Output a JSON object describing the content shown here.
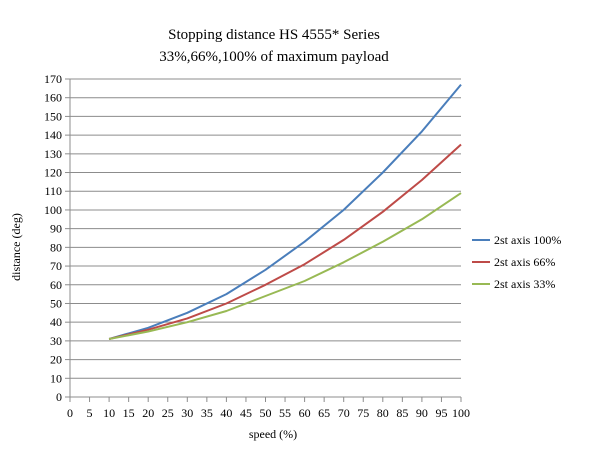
{
  "chart_data": {
    "type": "line",
    "title": "Stopping distance HS 4555* Series",
    "subtitle": "33%,66%,100% of maximum payload",
    "xlabel": "speed (%)",
    "ylabel": "distance (deg)",
    "xlim": [
      0,
      100
    ],
    "ylim": [
      0,
      170
    ],
    "xticks": [
      0,
      5,
      10,
      15,
      20,
      25,
      30,
      35,
      40,
      45,
      50,
      55,
      60,
      65,
      70,
      75,
      80,
      85,
      90,
      95,
      100
    ],
    "yticks": [
      0,
      10,
      20,
      30,
      40,
      50,
      60,
      70,
      80,
      90,
      100,
      110,
      120,
      130,
      140,
      150,
      160,
      170
    ],
    "grid": true,
    "legend_position": "right",
    "x": [
      10,
      20,
      30,
      40,
      50,
      60,
      70,
      80,
      90,
      100
    ],
    "series": [
      {
        "name": "2st axis 100%",
        "color": "#4a7ebb",
        "values": [
          31,
          37,
          45,
          55,
          68,
          83,
          100,
          120,
          142,
          167
        ]
      },
      {
        "name": "2st axis 66%",
        "color": "#be4b48",
        "values": [
          31,
          36,
          42,
          50,
          60,
          71,
          84,
          99,
          116,
          135
        ]
      },
      {
        "name": "2st axis 33%",
        "color": "#98b954",
        "values": [
          31,
          35,
          40,
          46,
          54,
          62,
          72,
          83,
          95,
          109
        ]
      }
    ]
  }
}
